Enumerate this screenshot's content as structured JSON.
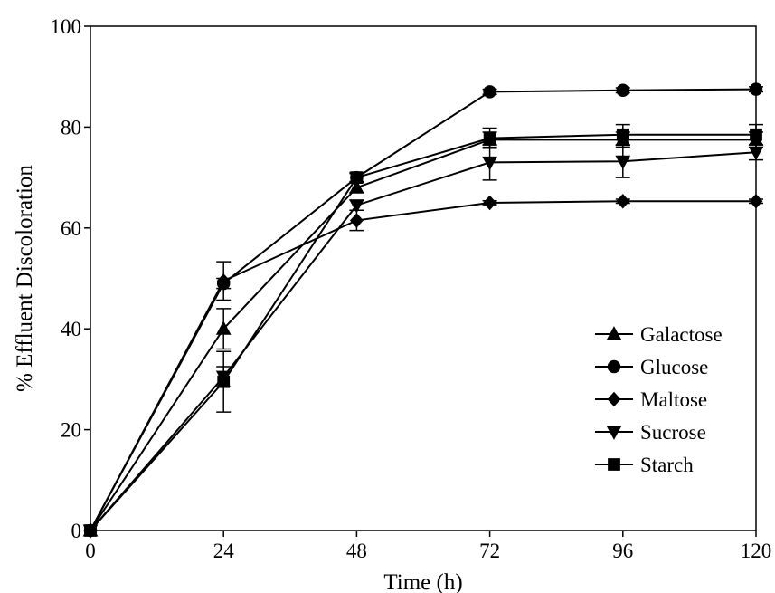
{
  "chart_data": {
    "type": "line",
    "title": "",
    "xlabel": "Time (h)",
    "ylabel": "% Effluent Discoloration",
    "xlim": [
      0,
      120
    ],
    "ylim": [
      0,
      100
    ],
    "xticks": [
      0,
      24,
      48,
      72,
      96,
      120
    ],
    "yticks": [
      0,
      20,
      40,
      60,
      80,
      100
    ],
    "x": [
      0,
      24,
      48,
      72,
      96,
      120
    ],
    "grid": false,
    "legend_position": "lower-right",
    "series": [
      {
        "name": "Galactose",
        "marker": "triangle-up",
        "values": [
          0,
          40,
          68,
          77.5,
          77.5,
          77.5
        ],
        "errors": [
          0,
          4.0,
          1.0,
          1.5,
          1.5,
          1.5
        ]
      },
      {
        "name": "Glucose",
        "marker": "circle",
        "values": [
          0,
          49,
          70,
          87,
          87.3,
          87.5
        ],
        "errors": [
          0,
          1.0,
          0.8,
          0.5,
          0.5,
          0.5
        ]
      },
      {
        "name": "Maltose",
        "marker": "diamond",
        "values": [
          0,
          49.5,
          61.5,
          65,
          65.3,
          65.3
        ],
        "errors": [
          0,
          3.8,
          2.0,
          0.4,
          0.4,
          0.4
        ]
      },
      {
        "name": "Sucrose",
        "marker": "triangle-down",
        "values": [
          0,
          30.5,
          64.5,
          73,
          73.2,
          75
        ],
        "errors": [
          0,
          2.0,
          1.0,
          3.5,
          3.2,
          1.5
        ]
      },
      {
        "name": "Starch",
        "marker": "square",
        "values": [
          0,
          29.5,
          70,
          77.8,
          78.5,
          78.5
        ],
        "errors": [
          0,
          6.0,
          1.0,
          2.0,
          2.0,
          2.0
        ]
      }
    ]
  }
}
